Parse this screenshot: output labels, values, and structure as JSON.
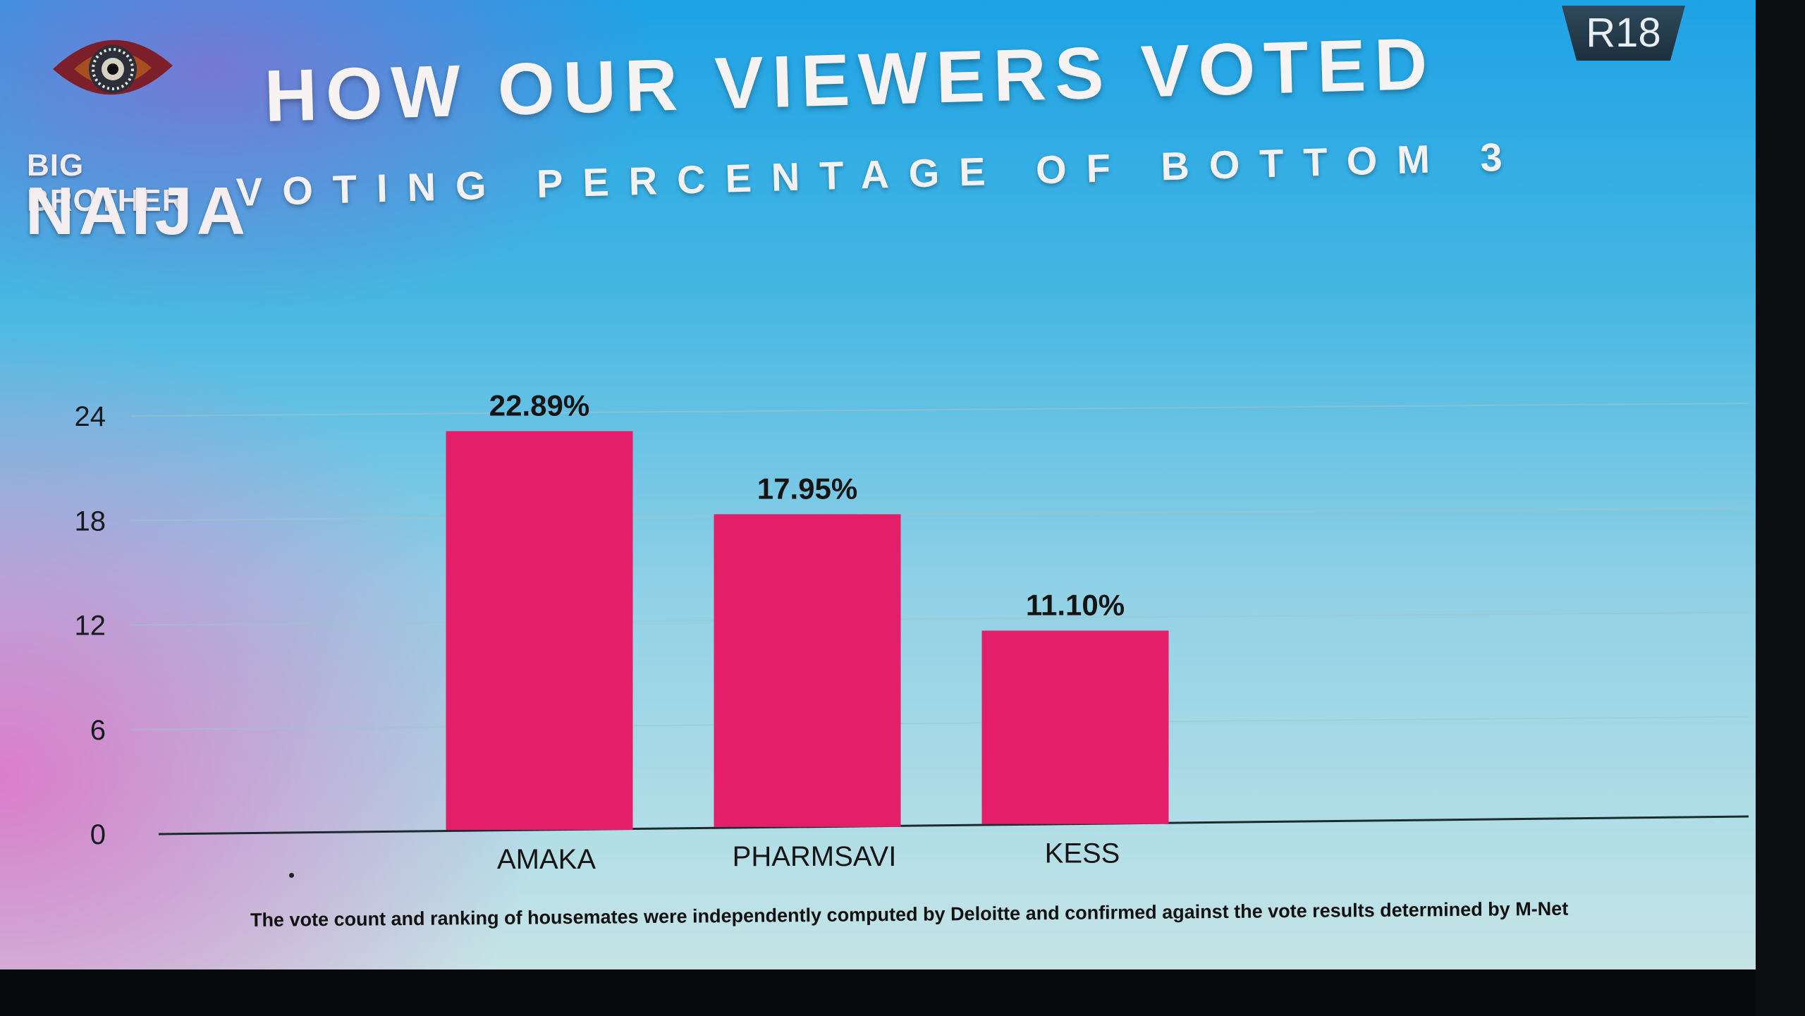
{
  "logo": {
    "line1": "BIG BROTHER",
    "line2": "NAIJA"
  },
  "rating": "R18",
  "title": "HOW OUR VIEWERS VOTED",
  "subtitle": "VOTING PERCENTAGE OF BOTTOM 3",
  "footnote": "The vote count and ranking of housemates were independently computed by Deloitte and confirmed against the vote results determined by M-Net",
  "colors": {
    "bar": "#e21f68",
    "axis": "#1b2b30",
    "grid": "#9ec6cc"
  },
  "chart_data": {
    "type": "bar",
    "categories": [
      "",
      "AMAKA",
      "PHARMSAVI",
      "KESS",
      "",
      ""
    ],
    "values": [
      null,
      22.89,
      17.95,
      11.1,
      null,
      null
    ],
    "data_labels": [
      "",
      "22.89%",
      "17.95%",
      "11.10%",
      "",
      ""
    ],
    "yticks": [
      0,
      6,
      12,
      18,
      24
    ],
    "ylim": [
      0,
      24
    ],
    "grid": true,
    "legend": "none"
  }
}
